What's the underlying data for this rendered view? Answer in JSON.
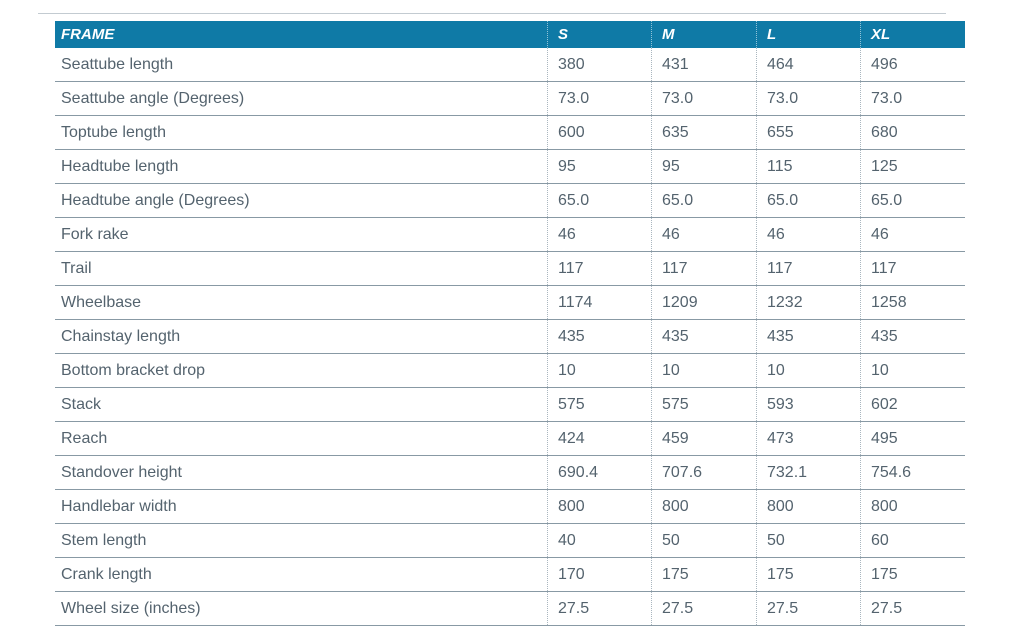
{
  "meta": {
    "accent_color": "#0f7aa6",
    "text_color": "#54636e",
    "row_line_color": "#8899a4"
  },
  "table": {
    "header": [
      "FRAME",
      "S",
      "M",
      "L",
      "XL"
    ],
    "rows": [
      {
        "label": "Seattube length",
        "values": [
          "380",
          "431",
          "464",
          "496"
        ]
      },
      {
        "label": "Seattube angle (Degrees)",
        "values": [
          "73.0",
          "73.0",
          "73.0",
          "73.0"
        ]
      },
      {
        "label": "Toptube length",
        "values": [
          "600",
          "635",
          "655",
          "680"
        ]
      },
      {
        "label": "Headtube length",
        "values": [
          "95",
          "95",
          "115",
          "125"
        ]
      },
      {
        "label": "Headtube angle (Degrees)",
        "values": [
          "65.0",
          "65.0",
          "65.0",
          "65.0"
        ]
      },
      {
        "label": "Fork rake",
        "values": [
          "46",
          "46",
          "46",
          "46"
        ]
      },
      {
        "label": "Trail",
        "values": [
          "117",
          "117",
          "117",
          "117"
        ]
      },
      {
        "label": "Wheelbase",
        "values": [
          "1174",
          "1209",
          "1232",
          "1258"
        ]
      },
      {
        "label": "Chainstay length",
        "values": [
          "435",
          "435",
          "435",
          "435"
        ]
      },
      {
        "label": "Bottom bracket drop",
        "values": [
          "10",
          "10",
          "10",
          "10"
        ]
      },
      {
        "label": "Stack",
        "values": [
          "575",
          "575",
          "593",
          "602"
        ]
      },
      {
        "label": "Reach",
        "values": [
          "424",
          "459",
          "473",
          "495"
        ]
      },
      {
        "label": "Standover height",
        "values": [
          "690.4",
          "707.6",
          "732.1",
          "754.6"
        ]
      },
      {
        "label": "Handlebar width",
        "values": [
          "800",
          "800",
          "800",
          "800"
        ]
      },
      {
        "label": "Stem length",
        "values": [
          "40",
          "50",
          "50",
          "60"
        ]
      },
      {
        "label": "Crank length",
        "values": [
          "170",
          "175",
          "175",
          "175"
        ]
      },
      {
        "label": "Wheel size (inches)",
        "values": [
          "27.5",
          "27.5",
          "27.5",
          "27.5"
        ]
      }
    ]
  }
}
